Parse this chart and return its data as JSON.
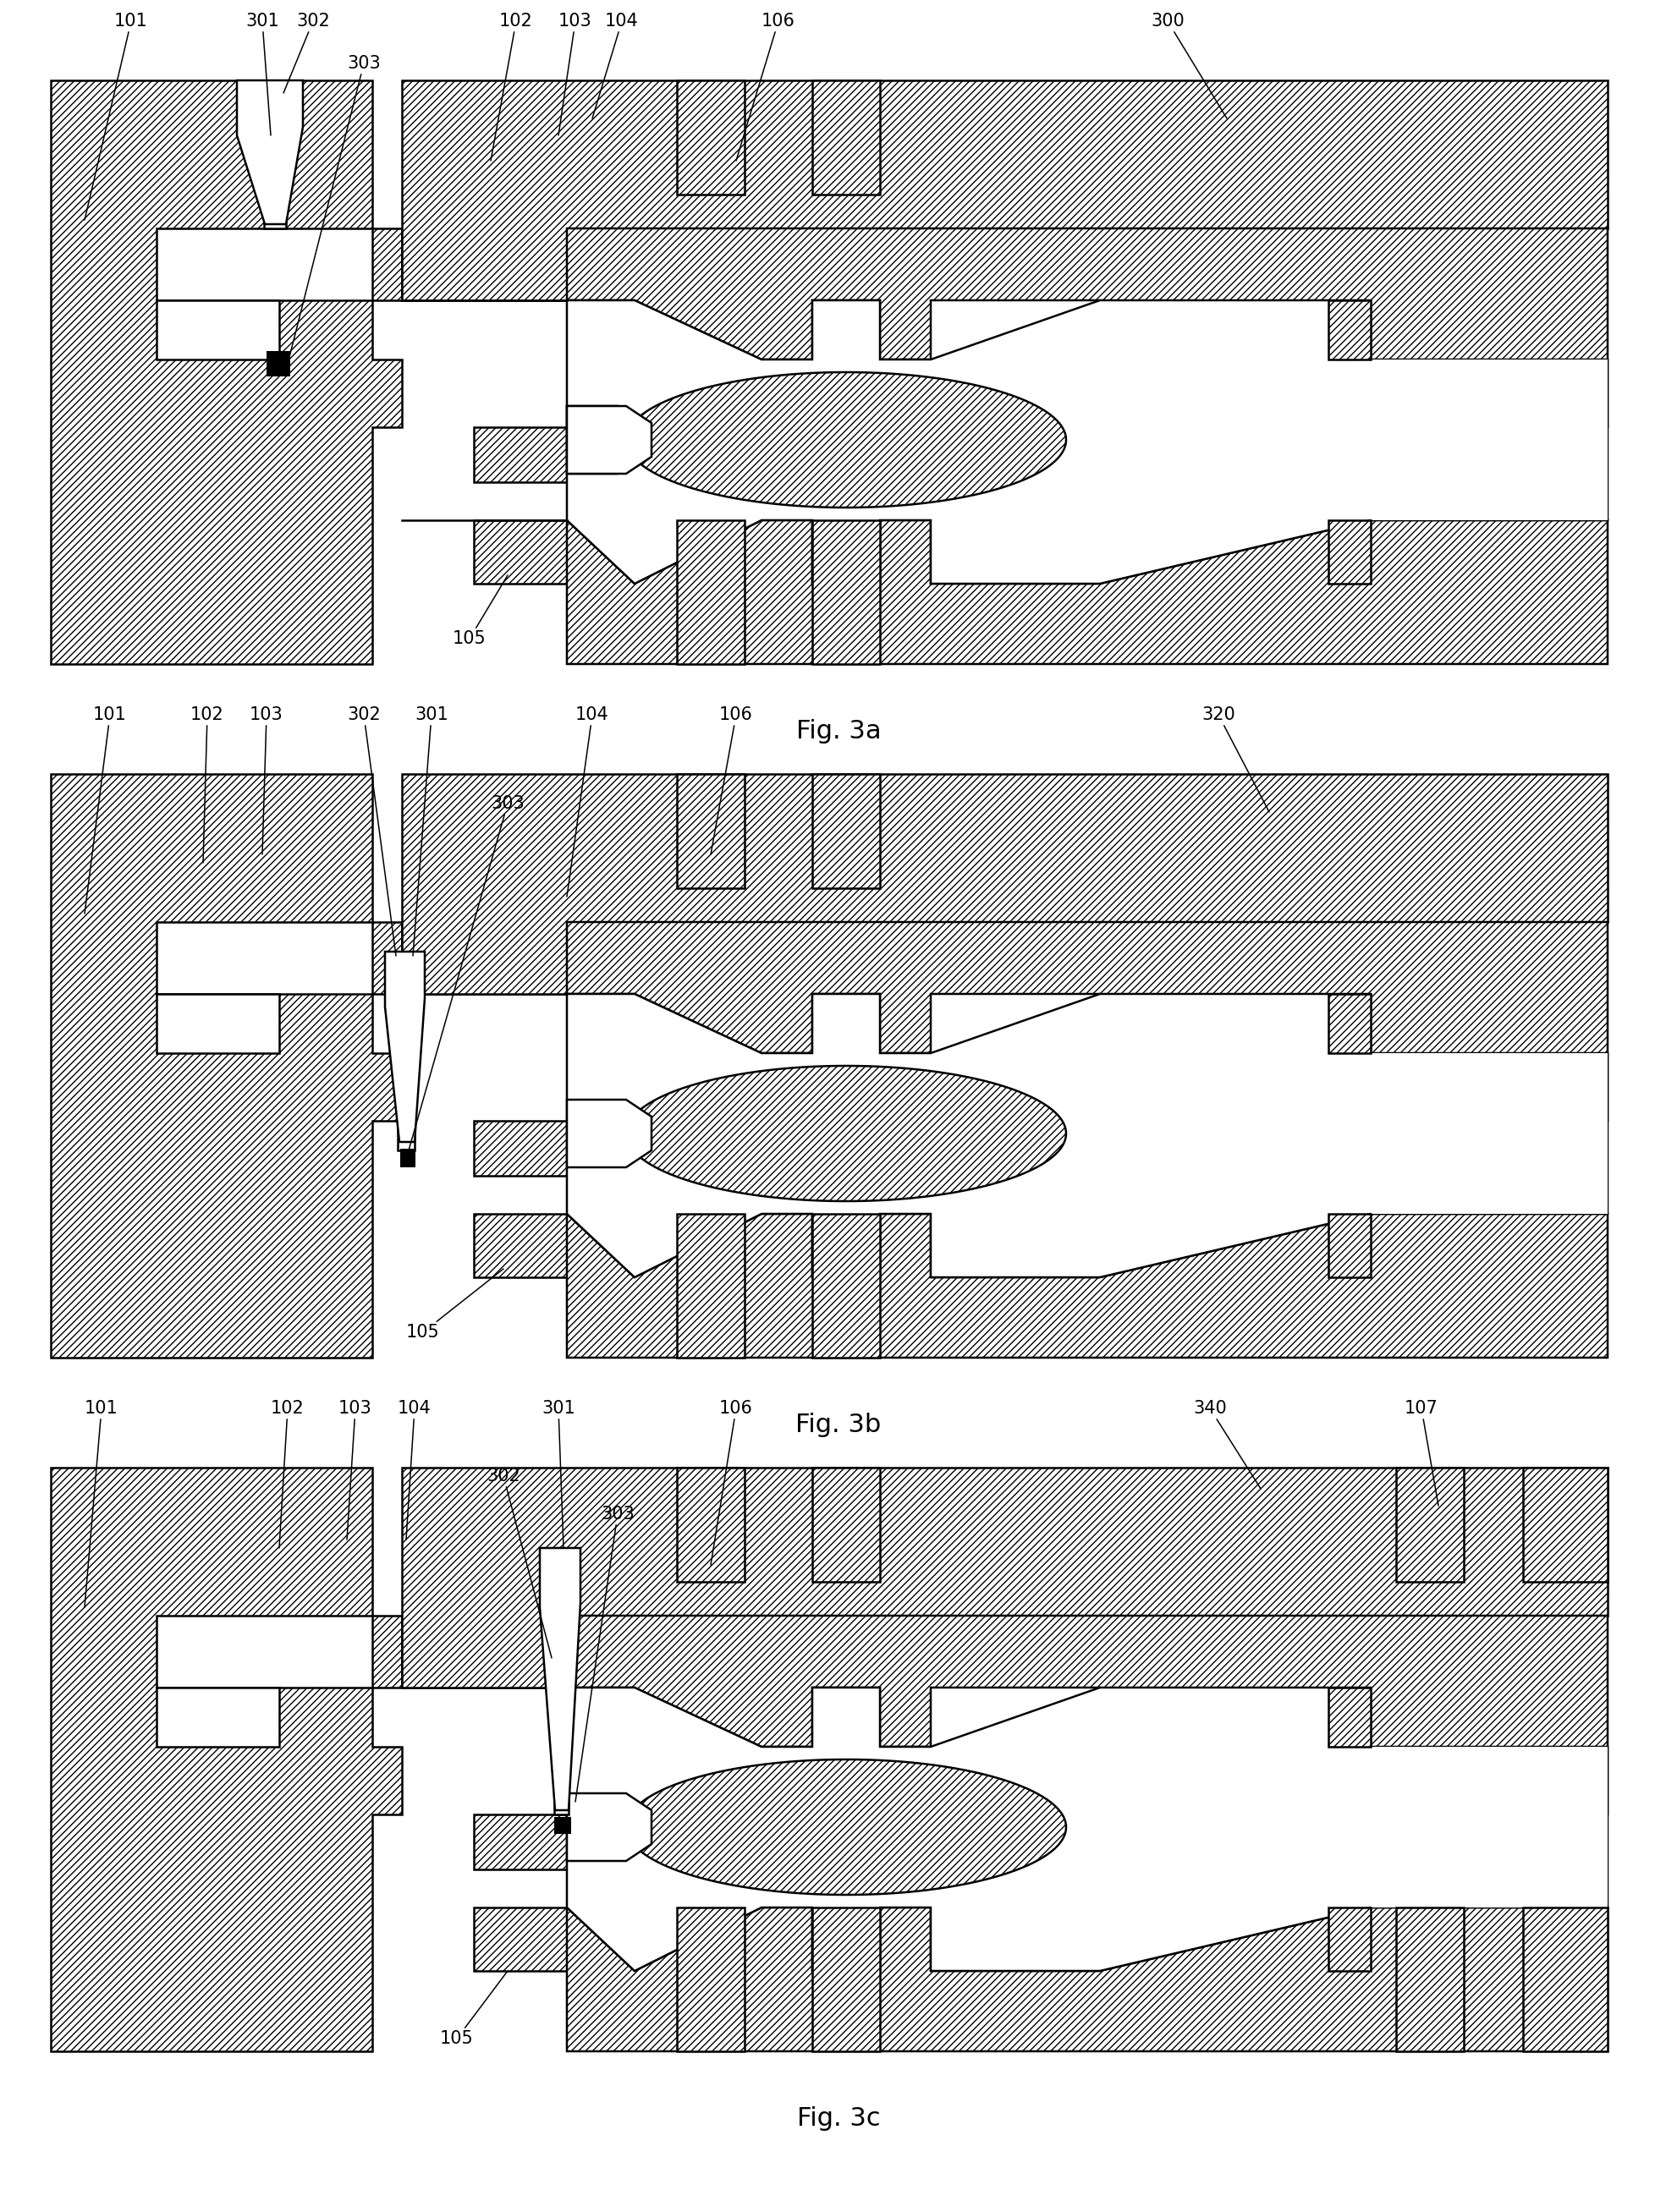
{
  "fig_labels": [
    "Fig. 3a",
    "Fig. 3b",
    "Fig. 3c"
  ],
  "background_color": "#ffffff",
  "lw": 1.8,
  "fs_label": 15,
  "fs_fig": 22
}
